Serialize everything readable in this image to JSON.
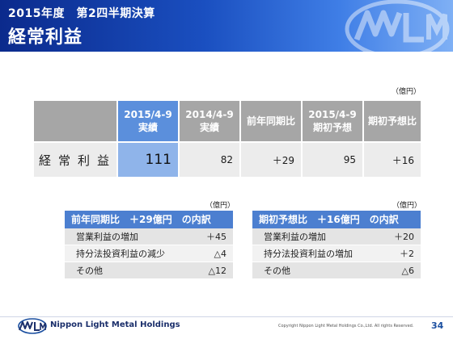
{
  "header": {
    "subtitle": "2015年度　第2四半期決算",
    "title": "経常利益"
  },
  "main_table": {
    "unit": "（億円）",
    "columns": [
      {
        "line1": "2015/4-9",
        "line2": "実績"
      },
      {
        "line1": "2014/4-9",
        "line2": "実績"
      },
      {
        "line1": "前年同期比",
        "line2": ""
      },
      {
        "line1": "2015/4-9",
        "line2": "期初予想"
      },
      {
        "line1": "期初予想比",
        "line2": ""
      }
    ],
    "row_label": "経常利益",
    "values": [
      "111",
      "82",
      "＋29",
      "95",
      "＋16"
    ]
  },
  "breakdown_left": {
    "unit": "（億円）",
    "title": "前年同期比　＋29億円　の内訳",
    "rows": [
      {
        "label": "営業利益の増加",
        "value": "＋45"
      },
      {
        "label": "持分法投資利益の減少",
        "value": "△4"
      },
      {
        "label": "その他",
        "value": "△12"
      }
    ]
  },
  "breakdown_right": {
    "unit": "（億円）",
    "title": "期初予想比　＋16億円　の内訳",
    "rows": [
      {
        "label": "営業利益の増加",
        "value": "＋20"
      },
      {
        "label": "持分法投資利益の増加",
        "value": "＋2"
      },
      {
        "label": "その他",
        "value": "△6"
      }
    ]
  },
  "footer": {
    "company": "Nippon Light Metal Holdings",
    "copyright": "Copyright Nippon Light Metal Holdings Co.,Ltd. All rights Reserved.",
    "page_number": "34"
  },
  "colors": {
    "banner_dark": "#0b2a8c",
    "banner_light": "#7fb0f5",
    "highlight_header": "#5b8fdc",
    "highlight_cell": "#8fb4ea",
    "header_gray": "#a6a6a6",
    "breakdown_header": "#4c7fd0"
  },
  "icons": {
    "banner_logo": "nlm-logo-icon",
    "footer_logo": "nlm-logo-icon"
  }
}
